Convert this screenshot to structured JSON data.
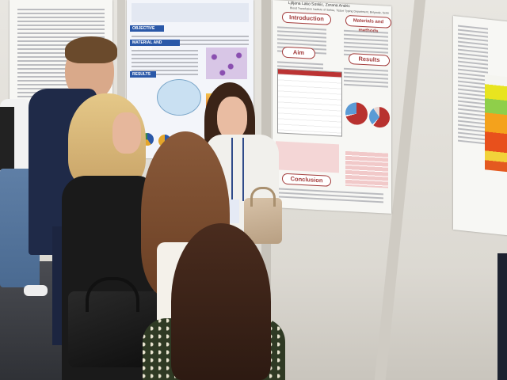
{
  "poster_main": {
    "author_line": "Ljiljana Lako Soskic, Zorana Andric",
    "institute_line": "Blood Transfusion Institute of Serbia, Tissue Typing Department, Belgrade, Serbia",
    "sections": {
      "introduction": "Introduction",
      "materials": "Materials and methods",
      "aim": "Aim",
      "results": "Results",
      "conclusion": "Conclusion"
    }
  },
  "poster_center": {
    "objective": "OBJECTIVE",
    "materials": "MATERIAL AND METHODS",
    "results": "RESULTS"
  },
  "colors": {
    "accent_red": "#a23a3a",
    "accent_blue": "#2a58a8",
    "pie_red": "#b8322f",
    "pie_blue": "#5b9bd5"
  }
}
